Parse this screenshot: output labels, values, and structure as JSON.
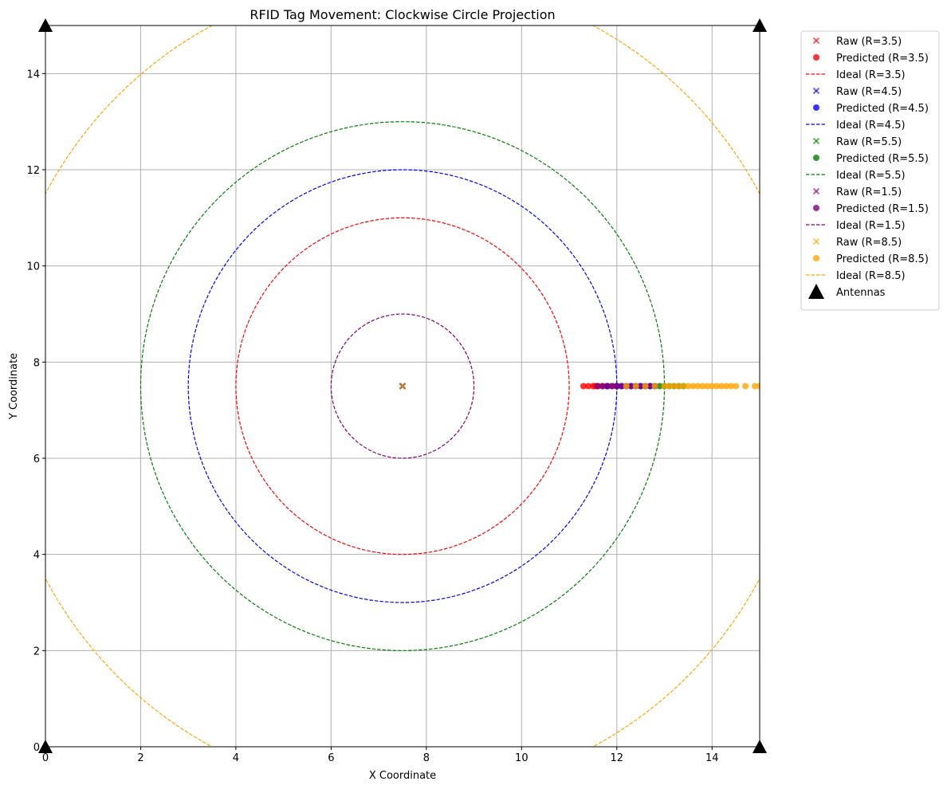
{
  "chart_data": {
    "type": "scatter",
    "title": "RFID Tag Movement: Clockwise Circle Projection",
    "xlabel": "X Coordinate",
    "ylabel": "Y Coordinate",
    "xlim": [
      0,
      15
    ],
    "ylim": [
      0,
      15
    ],
    "xticks": [
      "0",
      "2",
      "4",
      "6",
      "8",
      "10",
      "12",
      "14"
    ],
    "yticks": [
      "0",
      "2",
      "4",
      "6",
      "8",
      "10",
      "12",
      "14"
    ],
    "grid": true,
    "legend_position": "outside-upper-right",
    "center": [
      7.5,
      7.5
    ],
    "series": [
      {
        "radius": 3.5,
        "color": "#ff0000",
        "raw_name": "Raw (R=3.5)",
        "predicted_name": "Predicted (R=3.5)",
        "ideal_name": "Ideal (R=3.5)",
        "raw_points": [
          [
            7.5,
            7.5
          ]
        ],
        "predicted_points": [
          [
            11.3,
            7.5
          ],
          [
            11.4,
            7.5
          ],
          [
            11.5,
            7.5
          ],
          [
            11.55,
            7.5
          ],
          [
            11.6,
            7.5
          ],
          [
            11.7,
            7.5
          ],
          [
            11.8,
            7.5
          ],
          [
            11.9,
            7.5
          ],
          [
            12.0,
            7.5
          ]
        ]
      },
      {
        "radius": 4.5,
        "color": "#0000ff",
        "raw_name": "Raw (R=4.5)",
        "predicted_name": "Predicted (R=4.5)",
        "ideal_name": "Ideal (R=4.5)",
        "raw_points": [
          [
            7.5,
            7.5
          ]
        ],
        "predicted_points": [
          [
            11.8,
            7.5
          ],
          [
            12.0,
            7.5
          ],
          [
            12.1,
            7.5
          ],
          [
            12.2,
            7.5
          ],
          [
            12.3,
            7.5
          ],
          [
            12.4,
            7.5
          ],
          [
            12.5,
            7.5
          ],
          [
            12.6,
            7.5
          ],
          [
            12.7,
            7.5
          ],
          [
            12.8,
            7.5
          ]
        ]
      },
      {
        "radius": 5.5,
        "color": "#008000",
        "raw_name": "Raw (R=5.5)",
        "predicted_name": "Predicted (R=5.5)",
        "ideal_name": "Ideal (R=5.5)",
        "raw_points": [
          [
            7.5,
            7.5
          ]
        ],
        "predicted_points": [
          [
            12.4,
            7.5
          ],
          [
            12.6,
            7.5
          ],
          [
            12.8,
            7.5
          ],
          [
            12.9,
            7.5
          ],
          [
            13.0,
            7.5
          ],
          [
            13.1,
            7.5
          ],
          [
            13.2,
            7.5
          ],
          [
            13.3,
            7.5
          ],
          [
            13.4,
            7.5
          ]
        ]
      },
      {
        "radius": 1.5,
        "color": "#800080",
        "raw_name": "Raw (R=1.5)",
        "predicted_name": "Predicted (R=1.5)",
        "ideal_name": "Ideal (R=1.5)",
        "raw_points": [
          [
            7.5,
            7.5
          ]
        ],
        "predicted_points": [
          [
            11.6,
            7.5
          ],
          [
            11.7,
            7.5
          ],
          [
            11.8,
            7.5
          ],
          [
            11.9,
            7.5
          ],
          [
            12.0,
            7.5
          ],
          [
            12.1,
            7.5
          ],
          [
            12.2,
            7.5
          ],
          [
            12.3,
            7.5
          ],
          [
            12.4,
            7.5
          ],
          [
            12.5,
            7.5
          ],
          [
            12.6,
            7.5
          ],
          [
            12.7,
            7.5
          ],
          [
            12.8,
            7.5
          ]
        ]
      },
      {
        "radius": 8.5,
        "color": "#ffa500",
        "raw_name": "Raw (R=8.5)",
        "predicted_name": "Predicted (R=8.5)",
        "ideal_name": "Ideal (R=8.5)",
        "raw_points": [
          [
            7.5,
            7.5
          ]
        ],
        "predicted_points": [
          [
            12.2,
            7.5
          ],
          [
            12.4,
            7.5
          ],
          [
            12.6,
            7.5
          ],
          [
            12.8,
            7.5
          ],
          [
            13.0,
            7.5
          ],
          [
            13.1,
            7.5
          ],
          [
            13.2,
            7.5
          ],
          [
            13.3,
            7.5
          ],
          [
            13.4,
            7.5
          ],
          [
            13.5,
            7.5
          ],
          [
            13.6,
            7.5
          ],
          [
            13.7,
            7.5
          ],
          [
            13.8,
            7.5
          ],
          [
            13.9,
            7.5
          ],
          [
            14.0,
            7.5
          ],
          [
            14.1,
            7.5
          ],
          [
            14.2,
            7.5
          ],
          [
            14.3,
            7.5
          ],
          [
            14.4,
            7.5
          ],
          [
            14.5,
            7.5
          ],
          [
            14.7,
            7.5
          ],
          [
            14.9,
            7.5
          ],
          [
            15.0,
            7.5
          ]
        ]
      }
    ],
    "antennas": {
      "name": "Antennas",
      "color": "#000000",
      "points": [
        [
          0,
          0
        ],
        [
          0,
          15
        ],
        [
          15,
          0
        ],
        [
          15,
          15
        ]
      ]
    }
  }
}
